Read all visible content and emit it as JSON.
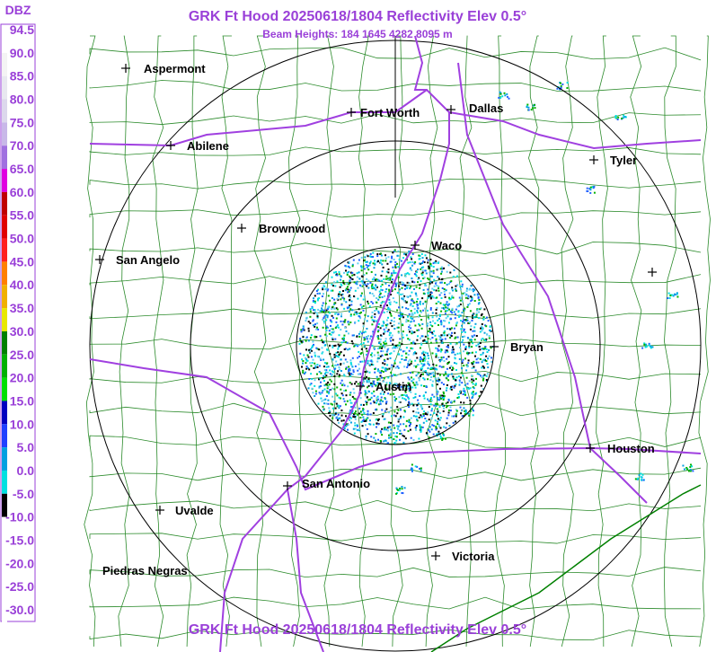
{
  "header": {
    "title": "GRK Ft Hood 20250618/1804 Reflectivity Elev 0.5°",
    "subtitle": "Beam Heights: 184 1645 4282 8095 m"
  },
  "footer": {
    "title": "GRK Ft Hood 20250618/1804 Reflectivity Elev 0.5°"
  },
  "legend": {
    "title": "DBZ",
    "entries": [
      {
        "label": "94.5",
        "color": "#ffffff"
      },
      {
        "label": "90.0",
        "color": "#f4f4f4"
      },
      {
        "label": "85.0",
        "color": "#e8e8f0"
      },
      {
        "label": "80.0",
        "color": "#dcd8ec"
      },
      {
        "label": "75.0",
        "color": "#c8b8e8"
      },
      {
        "label": "70.0",
        "color": "#a070e0"
      },
      {
        "label": "65.0",
        "color": "#e000e0"
      },
      {
        "label": "60.0",
        "color": "#c00000"
      },
      {
        "label": "55.0",
        "color": "#e00000"
      },
      {
        "label": "50.0",
        "color": "#ff2020"
      },
      {
        "label": "45.0",
        "color": "#ff8000"
      },
      {
        "label": "40.0",
        "color": "#f0b000"
      },
      {
        "label": "35.0",
        "color": "#e8e800"
      },
      {
        "label": "30.0",
        "color": "#008000"
      },
      {
        "label": "25.0",
        "color": "#00b000"
      },
      {
        "label": "20.0",
        "color": "#00e000"
      },
      {
        "label": "15.0",
        "color": "#0000c0"
      },
      {
        "label": "10.0",
        "color": "#2040ff"
      },
      {
        "label": "5.0",
        "color": "#00a0e0"
      },
      {
        "label": "0.0",
        "color": "#00e0e0"
      },
      {
        "label": "-5.0",
        "color": "#000000"
      },
      {
        "label": "-10.0",
        "color": "#ffffff"
      },
      {
        "label": "-15.0",
        "color": "#ffffff"
      },
      {
        "label": "-20.0",
        "color": "#ffffff"
      },
      {
        "label": "-25.0",
        "color": "#ffffff"
      },
      {
        "label": "-30.0",
        "color": "#ffffff"
      }
    ]
  },
  "cities": [
    "Aspermont",
    "Fort Worth",
    "Dallas",
    "Abilene",
    "Tyler",
    "Brownwood",
    "Waco",
    "San Angelo",
    "Bryan",
    "Austin",
    "Houston",
    "San Antonio",
    "Uvalde",
    "Piedras Negras",
    "Victoria"
  ]
}
